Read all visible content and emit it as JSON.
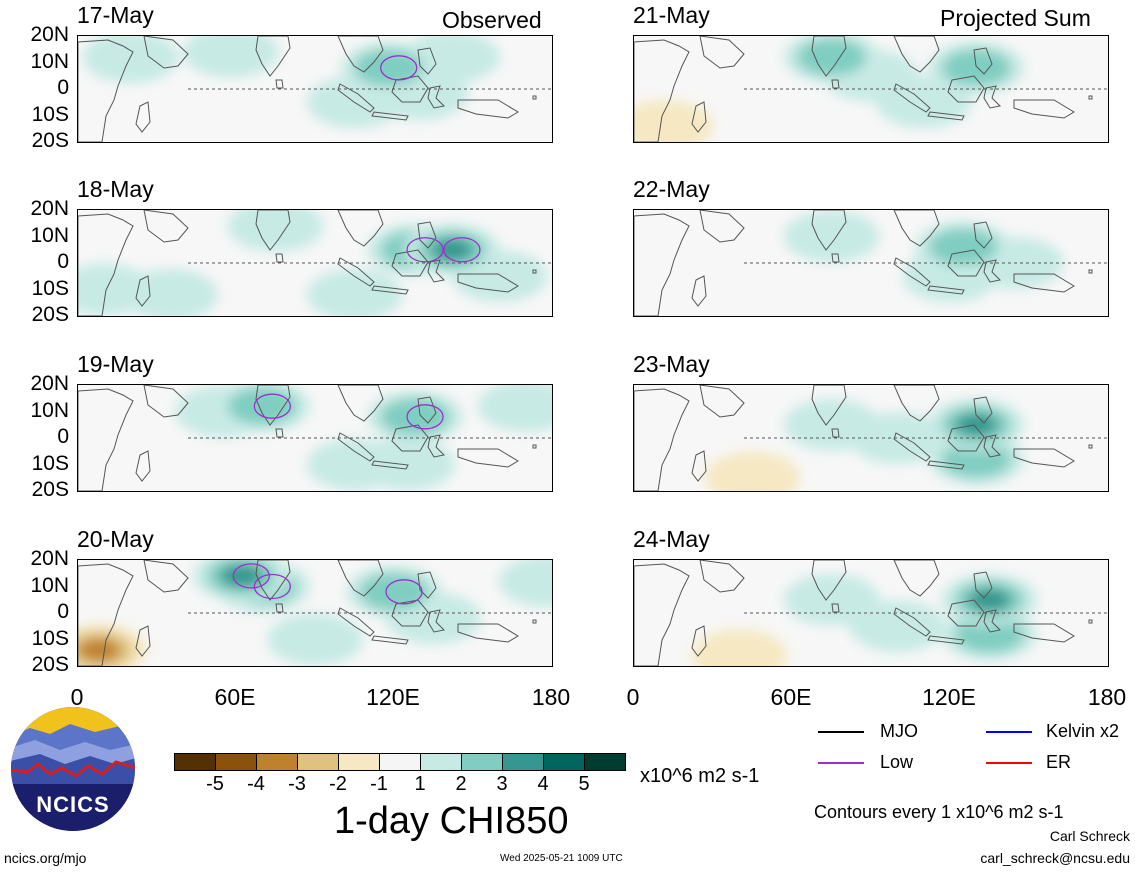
{
  "headers": {
    "left": "Observed",
    "right": "Projected Sum"
  },
  "panels_left": [
    {
      "date": "17-May",
      "centers": [
        {
          "lon": 20,
          "lat": 12,
          "level": 1
        },
        {
          "lon": 58,
          "lat": 14,
          "level": 1
        },
        {
          "lon": 105,
          "lat": -5,
          "level": 1
        },
        {
          "lon": 118,
          "lat": 8,
          "level": 2
        },
        {
          "lon": 142,
          "lat": 12,
          "level": 1
        },
        {
          "lon": 130,
          "lat": -2,
          "level": 1
        }
      ]
    },
    {
      "date": "18-May",
      "centers": [
        {
          "lon": 10,
          "lat": -10,
          "level": 1
        },
        {
          "lon": 35,
          "lat": -12,
          "level": 1
        },
        {
          "lon": 75,
          "lat": 14,
          "level": 1
        },
        {
          "lon": 128,
          "lat": 5,
          "level": 2
        },
        {
          "lon": 142,
          "lat": 5,
          "level": 3
        },
        {
          "lon": 160,
          "lat": -5,
          "level": 1
        },
        {
          "lon": 105,
          "lat": -12,
          "level": 1
        }
      ]
    },
    {
      "date": "19-May",
      "centers": [
        {
          "lon": 70,
          "lat": 12,
          "level": 2
        },
        {
          "lon": 55,
          "lat": 10,
          "level": 1
        },
        {
          "lon": 128,
          "lat": 8,
          "level": 2
        },
        {
          "lon": 125,
          "lat": -10,
          "level": 1
        },
        {
          "lon": 170,
          "lat": 12,
          "level": 1
        },
        {
          "lon": 105,
          "lat": -10,
          "level": 1
        }
      ]
    },
    {
      "date": "20-May",
      "centers": [
        {
          "lon": 62,
          "lat": 14,
          "level": 3
        },
        {
          "lon": 70,
          "lat": 10,
          "level": 2
        },
        {
          "lon": 120,
          "lat": 8,
          "level": 2
        },
        {
          "lon": 135,
          "lat": -2,
          "level": 1
        },
        {
          "lon": 90,
          "lat": -10,
          "level": 1
        },
        {
          "lon": 178,
          "lat": 12,
          "level": 1
        },
        {
          "lon": 8,
          "lat": -14,
          "level": -3
        }
      ]
    }
  ],
  "panels_right": [
    {
      "date": "21-May",
      "centers": [
        {
          "lon": 75,
          "lat": 12,
          "level": 2
        },
        {
          "lon": 130,
          "lat": 8,
          "level": 2
        },
        {
          "lon": 110,
          "lat": -5,
          "level": 1
        },
        {
          "lon": 90,
          "lat": 5,
          "level": 1
        },
        {
          "lon": 12,
          "lat": -14,
          "level": -1
        }
      ]
    },
    {
      "date": "22-May",
      "centers": [
        {
          "lon": 75,
          "lat": 10,
          "level": 1
        },
        {
          "lon": 125,
          "lat": 6,
          "level": 2
        },
        {
          "lon": 120,
          "lat": -5,
          "level": 1
        },
        {
          "lon": 145,
          "lat": 0,
          "level": 1
        }
      ]
    },
    {
      "date": "23-May",
      "centers": [
        {
          "lon": 130,
          "lat": 5,
          "level": 3
        },
        {
          "lon": 130,
          "lat": -8,
          "level": 2
        },
        {
          "lon": 100,
          "lat": 0,
          "level": 1
        },
        {
          "lon": 75,
          "lat": 5,
          "level": 1
        },
        {
          "lon": 45,
          "lat": -15,
          "level": -1
        }
      ]
    },
    {
      "date": "24-May",
      "centers": [
        {
          "lon": 135,
          "lat": 5,
          "level": 3
        },
        {
          "lon": 135,
          "lat": -8,
          "level": 2
        },
        {
          "lon": 100,
          "lat": -5,
          "level": 1
        },
        {
          "lon": 75,
          "lat": 5,
          "level": 1
        },
        {
          "lon": 40,
          "lat": -16,
          "level": -1
        }
      ]
    }
  ],
  "lat_labels": [
    "20N",
    "10N",
    "0",
    "10S",
    "20S"
  ],
  "lon_labels": [
    "0",
    "60E",
    "120E",
    "180"
  ],
  "colorbar": {
    "colors": [
      "#543005",
      "#8c510a",
      "#bf812d",
      "#dfc27d",
      "#f6e8c3",
      "#f5f5f5",
      "#c7eae5",
      "#80cdc1",
      "#35978f",
      "#01665e",
      "#003c30"
    ],
    "ticks": [
      "-5",
      "-4",
      "-3",
      "-2",
      "-1",
      "1",
      "2",
      "3",
      "4",
      "5"
    ],
    "units": "x10^6 m2 s-1",
    "title": "1-day CHI850"
  },
  "legend": [
    {
      "label": "MJO",
      "color": "#000000"
    },
    {
      "label": "Kelvin x2",
      "color": "#0000ff"
    },
    {
      "label": "Low",
      "color": "#9932cc"
    },
    {
      "label": "ER",
      "color": "#ff0000"
    }
  ],
  "contour_note": "Contours every 1 x10^6 m2 s-1",
  "credit_name": "Carl Schreck",
  "credit_email": "carl_schreck@ncsu.edu",
  "site": "ncics.org/mjo",
  "timestamp": "Wed 2025-05-21 1009 UTC",
  "logo_text": "NCICS",
  "land_colors": {
    "fill_outline": "#555555"
  }
}
